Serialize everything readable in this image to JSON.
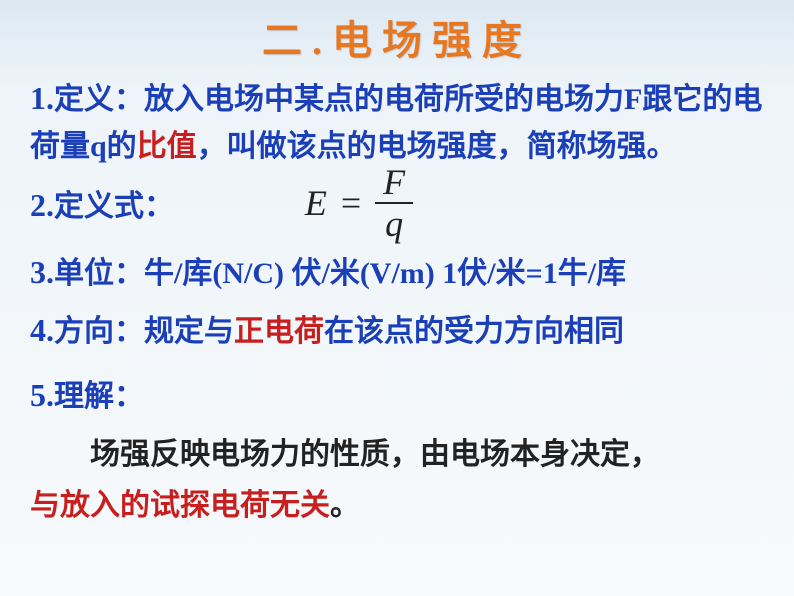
{
  "colors": {
    "title": "#e87722",
    "body": "#1a3fb8",
    "emphasis": "#c81e1e",
    "formula": "#222222",
    "bg_top": "#dce8f2",
    "bg_bottom": "#f7fafc"
  },
  "typography": {
    "title_fontsize": 40,
    "body_fontsize": 30,
    "formula_fontsize": 36,
    "font_family_body": "KaiTi",
    "font_family_formula": "Times New Roman"
  },
  "title": "二.电场强度",
  "item1": {
    "num": "1.",
    "pre": "定义：放入电场中某点的电荷所受的电场力F跟它的电荷量q的",
    "em": "比值",
    "post": "，叫做该点的电场强度，简称场强。"
  },
  "item2": {
    "num": "2.",
    "label": "定义式：",
    "formula": {
      "lhs": "E",
      "eq": "=",
      "num": "F",
      "den": "q"
    }
  },
  "item3": {
    "num": "3.",
    "text": "单位：牛/库(N/C) 伏/米(V/m)  1伏/米=1牛/库"
  },
  "item4": {
    "num": "4.",
    "pre": "方向：规定与",
    "em": "正电荷",
    "post": "在该点的受力方向相同"
  },
  "item5": {
    "num": "5.",
    "label": "理解：",
    "body_pre": "场强反映电场力的性质，由电场本身决定，",
    "body_em": "与放入的试探电荷无关",
    "body_post": "。"
  }
}
